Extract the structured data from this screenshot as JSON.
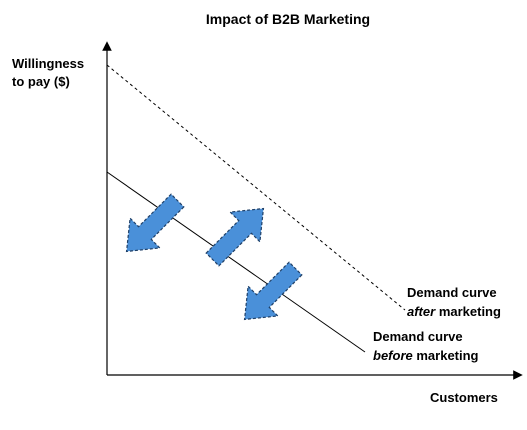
{
  "title": "Impact of B2B Marketing",
  "y_axis_label": {
    "line1": "Willingness",
    "line2": "to pay ($)"
  },
  "x_axis_label": "Customers",
  "curve_after": {
    "line1": "Demand curve",
    "emphasis": "after",
    "rest": "marketing"
  },
  "curve_before": {
    "line1": "Demand curve",
    "emphasis": "before",
    "rest": "marketing"
  }
}
